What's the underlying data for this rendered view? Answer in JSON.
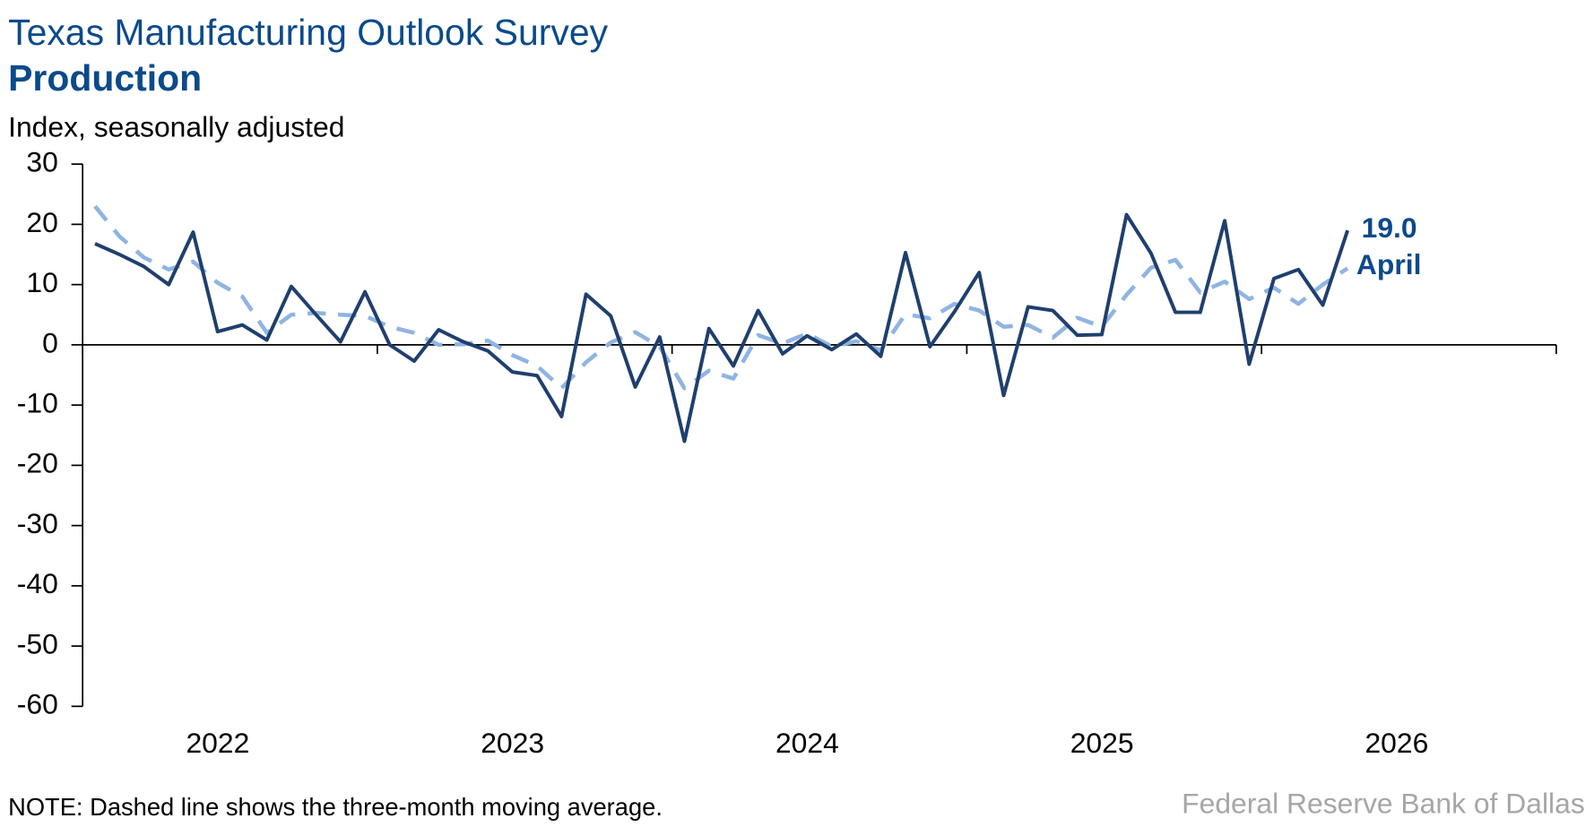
{
  "chart_data": {
    "type": "line",
    "title": "Texas Manufacturing Outlook Survey",
    "subtitle": "Production",
    "y_label": "Index, seasonally adjusted",
    "note": "NOTE: Dashed line shows the three-month moving average.",
    "source": "Federal Reserve Bank of Dallas",
    "annotations": [
      "19.0",
      "April"
    ],
    "x": [
      2022.042,
      2022.125,
      2022.208,
      2022.292,
      2022.375,
      2022.458,
      2022.542,
      2022.625,
      2022.708,
      2022.792,
      2022.875,
      2022.958,
      2023.042,
      2023.125,
      2023.208,
      2023.292,
      2023.375,
      2023.458,
      2023.542,
      2023.625,
      2023.708,
      2023.792,
      2023.875,
      2023.958,
      2024.042,
      2024.125,
      2024.208,
      2024.292,
      2024.375,
      2024.458,
      2024.542,
      2024.625,
      2024.708,
      2024.792,
      2024.875,
      2024.958,
      2025.042,
      2025.125,
      2025.208,
      2025.292,
      2025.375,
      2025.458,
      2025.542,
      2025.625,
      2025.708,
      2025.792,
      2025.875,
      2025.958,
      2026.042,
      2026.125,
      2026.208,
      2026.292
    ],
    "series": [
      {
        "name": "Production",
        "color": "#1f3f6e",
        "dashed": false,
        "values": [
          16.8,
          15,
          13,
          10,
          18.7,
          2.2,
          3.3,
          0.8,
          9.7,
          5,
          0.5,
          8.8,
          0,
          -2.7,
          2.5,
          0.5,
          -1,
          -4.5,
          -5.1,
          -11.9,
          8.4,
          4.8,
          -7,
          1.3,
          -16,
          2.7,
          -3.5,
          5.7,
          -1.5,
          1.5,
          -0.8,
          1.8,
          -1.9,
          15.3,
          -0.3,
          5.5,
          12,
          -8.4,
          6.3,
          5.7,
          1.6,
          1.7,
          21.6,
          15.2,
          5.4,
          5.4,
          20.6,
          -3.2,
          11,
          12.5,
          6.6,
          19
        ]
      },
      {
        "name": "Three-month moving average",
        "color": "#8fb4e3",
        "dashed": true,
        "values": [
          23,
          18,
          14.5,
          12.5,
          13.8,
          10.3,
          8,
          2,
          5,
          5.3,
          5,
          4.8,
          3,
          2,
          0,
          0.1,
          0.7,
          -1.7,
          -3.5,
          -7.2,
          -2.9,
          0.4,
          2.1,
          -0.3,
          -7.2,
          -4.3,
          -5.6,
          1.6,
          0.2,
          1.9,
          -0.3,
          0.6,
          -0.9,
          5.1,
          4.4,
          6.8,
          5.7,
          3,
          3.3,
          1.2,
          4.5,
          3,
          8.3,
          12.8,
          14.1,
          8.7,
          10.5,
          7.6,
          9.5,
          6.8,
          10,
          12.7
        ]
      }
    ],
    "xlim": [
      2022,
      2027
    ],
    "xticks": [
      2022,
      2023,
      2024,
      2025,
      2026,
      2027
    ],
    "xtick_labels": [
      {
        "value": 2022.5,
        "label": "2022"
      },
      {
        "value": 2023.5,
        "label": "2023"
      },
      {
        "value": 2024.5,
        "label": "2024"
      },
      {
        "value": 2025.5,
        "label": "2025"
      },
      {
        "value": 2026.5,
        "label": "2026"
      }
    ],
    "ylim": [
      -60,
      30
    ],
    "yticks": [
      -60,
      -50,
      -40,
      -30,
      -20,
      -10,
      0,
      10,
      20,
      30
    ],
    "title_color": "#0b4a8b",
    "grid": false
  }
}
